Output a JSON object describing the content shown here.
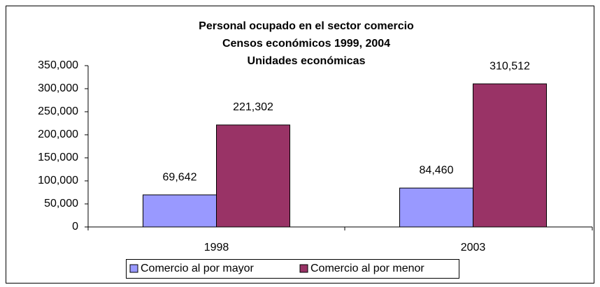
{
  "chart_data": {
    "type": "bar",
    "title": [
      "Personal ocupado en el sector comercio",
      "Censos económicos 1999, 2004",
      "Unidades económicas"
    ],
    "categories": [
      "1998",
      "2003"
    ],
    "series": [
      {
        "name": "Comercio al por mayor",
        "color": "#9999ff",
        "values": [
          69642,
          84460
        ],
        "value_labels": [
          "69,642",
          "84,460"
        ]
      },
      {
        "name": "Comercio al por menor",
        "color": "#993366",
        "values": [
          221302,
          310512
        ],
        "value_labels": [
          "221,302",
          "310,512"
        ]
      }
    ],
    "ylim": [
      0,
      350000
    ],
    "yticks": [
      0,
      {
        "value": 50000,
        "label": "50,000"
      },
      {
        "value": 100000,
        "label": "100,000"
      },
      {
        "value": 150000,
        "label": "150,000"
      },
      {
        "value": 200000,
        "label": "200,000"
      },
      {
        "value": 250000,
        "label": "250,000"
      },
      {
        "value": 300000,
        "label": "300,000"
      },
      {
        "value": 350000,
        "label": "350,000"
      }
    ],
    "legend": "bottom"
  }
}
